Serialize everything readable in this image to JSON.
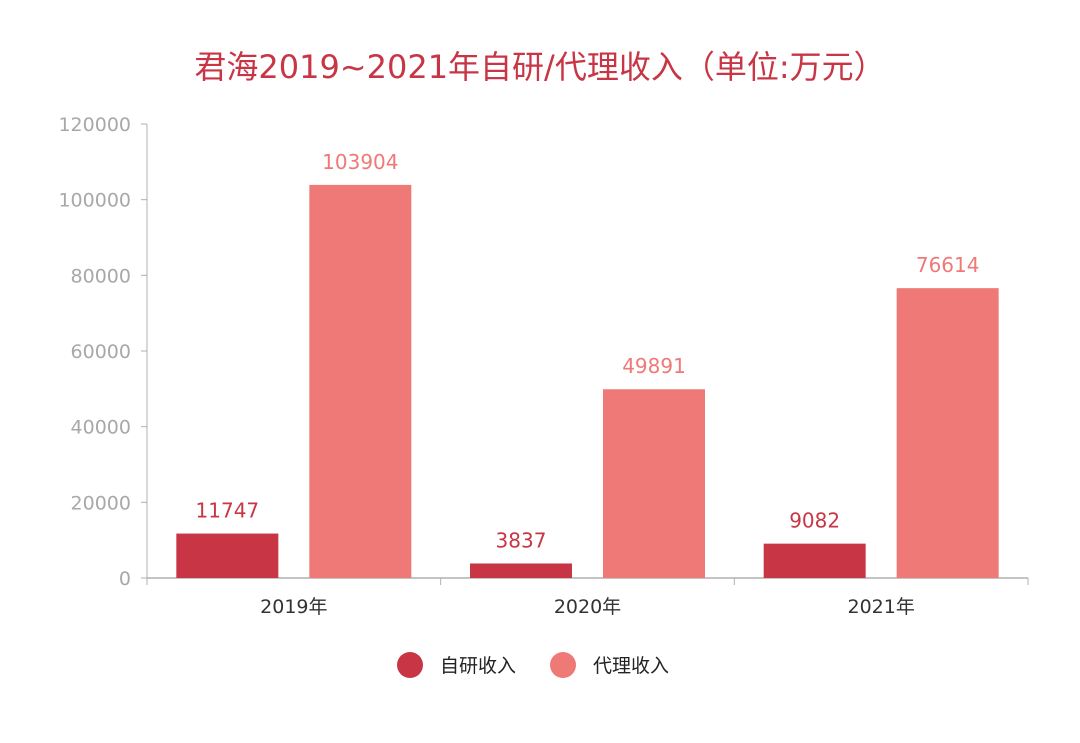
{
  "chart_data": {
    "type": "bar",
    "title": "君海2019~2021年自研/代理收入（单位:万元）",
    "categories": [
      "2019年",
      "2020年",
      "2021年"
    ],
    "series": [
      {
        "name": "自研收入",
        "values": [
          11747,
          3837,
          9082
        ],
        "color": "#c83645"
      },
      {
        "name": "代理收入",
        "values": [
          103904,
          49891,
          76614
        ],
        "color": "#ee7977"
      }
    ],
    "ylim": [
      0,
      120000
    ],
    "yticks": [
      0,
      20000,
      40000,
      60000,
      80000,
      100000,
      120000
    ],
    "grid": false,
    "legend": "bottom-center",
    "colors": {
      "title": "#c83645",
      "axis": "#b0b0b0",
      "tick_text": "#a8a8a8",
      "category_text": "#333333"
    }
  }
}
